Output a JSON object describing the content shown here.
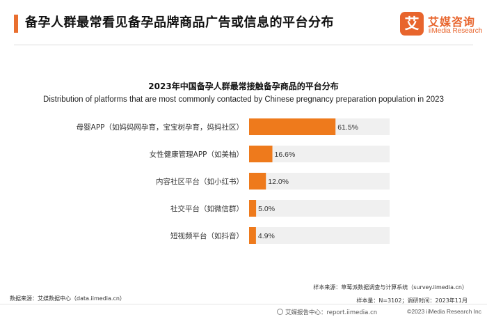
{
  "header": {
    "title": "备孕人群最常看见备孕品牌商品广告或信息的平台分布",
    "accent_color": "#e96f2f"
  },
  "logo": {
    "mark": "艾",
    "cn": "艾媒咨询",
    "en": "iiMedia Research"
  },
  "chart_data": {
    "type": "bar",
    "orientation": "horizontal",
    "title": "2023年中国备孕人群最常接触备孕商品的平台分布",
    "subtitle": "Distribution of platforms that are most commonly contacted by Chinese pregnancy preparation population in 2023",
    "categories": [
      "母婴APP（如妈妈网孕育，宝宝树孕育，妈妈社区）",
      "女性健康管理APP（如美柚）",
      "内容社区平台（如小红书）",
      "社交平台（如微信群）",
      "短视频平台（如抖音）"
    ],
    "values": [
      61.5,
      16.6,
      12.0,
      5.0,
      4.9
    ],
    "value_labels": [
      "61.5%",
      "16.6%",
      "12.0%",
      "5.0%",
      "4.9%"
    ],
    "xlim": [
      0,
      100
    ],
    "bar_color": "#ee7a1c",
    "track_color": "#f0f0f0",
    "grid": false,
    "legend": "none"
  },
  "footer": {
    "data_source": "数据来源：艾媒数据中心（data.iimedia.cn）",
    "sample_source": "样本来源：草莓派数据调查与计算系统（survey.iimedia.cn）",
    "sample_info": "样本量：N=3102；调研时间：2023年11月",
    "report_center": "艾媒报告中心：report.iimedia.cn",
    "copyright": "©2023  iiMedia Research Inc"
  }
}
